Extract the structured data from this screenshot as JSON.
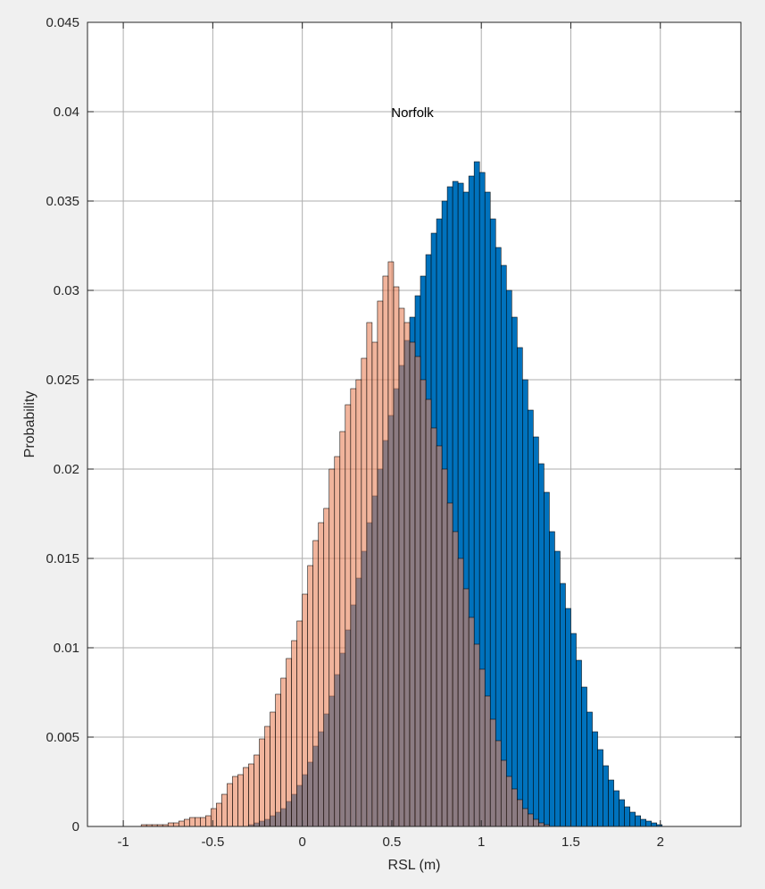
{
  "chart_data": {
    "type": "bar",
    "subtype": "overlaid-histogram",
    "annotation": "Norfolk",
    "xlabel": "RSL (m)",
    "ylabel": "Probability",
    "xlim": [
      -1.2,
      2.45
    ],
    "ylim": [
      0,
      0.045
    ],
    "xticks": [
      -1,
      -0.5,
      0,
      0.5,
      1,
      1.5,
      2
    ],
    "xtick_labels": [
      "-1",
      "-0.5",
      "0",
      "0.5",
      "1",
      "1.5",
      "2"
    ],
    "yticks": [
      0,
      0.005,
      0.01,
      0.015,
      0.02,
      0.025,
      0.03,
      0.035,
      0.04,
      0.045
    ],
    "ytick_labels": [
      "0",
      "0.005",
      "0.01",
      "0.015",
      "0.02",
      "0.025",
      "0.03",
      "0.035",
      "0.04",
      "0.045"
    ],
    "grid": true,
    "colors": {
      "background": "#f0f0f0",
      "axes_bg": "#ffffff",
      "grid": "#aeaeae",
      "axis": "#262626",
      "bar_edge": "#000000",
      "series_blue": "#0072bd",
      "series_orange": "#e8825a",
      "overlap": "#8c4d3a"
    },
    "series": [
      {
        "color_key": "series_blue",
        "bin_edges_start": -0.3,
        "bin_width": 0.03,
        "values": [
          0.0001,
          0.0002,
          0.0003,
          0.0004,
          0.0006,
          0.0008,
          0.001,
          0.0014,
          0.0018,
          0.0023,
          0.0029,
          0.0036,
          0.0045,
          0.0053,
          0.0063,
          0.0073,
          0.0085,
          0.0097,
          0.011,
          0.0124,
          0.0139,
          0.0154,
          0.017,
          0.0185,
          0.02,
          0.0216,
          0.023,
          0.0245,
          0.0258,
          0.0272,
          0.0285,
          0.0297,
          0.0308,
          0.032,
          0.0332,
          0.034,
          0.035,
          0.0358,
          0.0361,
          0.036,
          0.0355,
          0.0364,
          0.0372,
          0.0366,
          0.0355,
          0.034,
          0.0324,
          0.0314,
          0.03,
          0.0285,
          0.0268,
          0.025,
          0.0233,
          0.0218,
          0.0203,
          0.0187,
          0.0165,
          0.0154,
          0.0136,
          0.0122,
          0.0108,
          0.0093,
          0.0078,
          0.0064,
          0.0053,
          0.0043,
          0.0034,
          0.0026,
          0.002,
          0.0015,
          0.0011,
          0.0008,
          0.0006,
          0.0004,
          0.0003,
          0.0002,
          0.0001
        ]
      },
      {
        "color_key": "series_orange",
        "bin_edges_start": -0.9,
        "bin_width": 0.03,
        "values": [
          0.0001,
          0.0001,
          0.0001,
          0.0001,
          0.0001,
          0.0002,
          0.0002,
          0.0003,
          0.0004,
          0.0005,
          0.0005,
          0.0005,
          0.0006,
          0.001,
          0.0013,
          0.0018,
          0.0024,
          0.0028,
          0.0029,
          0.0033,
          0.0035,
          0.004,
          0.0049,
          0.0056,
          0.0064,
          0.0074,
          0.0083,
          0.0094,
          0.0104,
          0.0115,
          0.013,
          0.0146,
          0.016,
          0.017,
          0.0178,
          0.02,
          0.0207,
          0.0221,
          0.0236,
          0.0245,
          0.025,
          0.0262,
          0.0282,
          0.0271,
          0.0294,
          0.0308,
          0.0316,
          0.0302,
          0.029,
          0.0282,
          0.0271,
          0.0263,
          0.025,
          0.0239,
          0.0223,
          0.0213,
          0.02,
          0.0181,
          0.0165,
          0.015,
          0.0133,
          0.0117,
          0.0102,
          0.0088,
          0.0073,
          0.006,
          0.0048,
          0.0037,
          0.0028,
          0.0021,
          0.0015,
          0.001,
          0.0007,
          0.0004,
          0.0002,
          0.0001
        ]
      }
    ]
  }
}
